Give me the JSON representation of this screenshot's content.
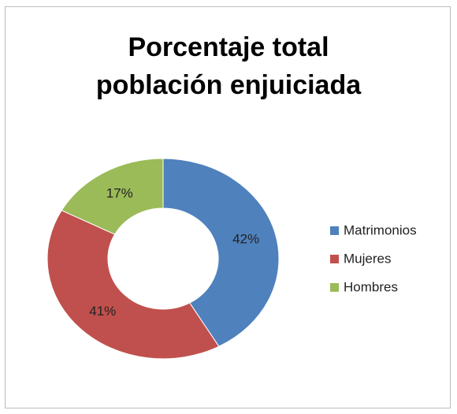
{
  "chart_data": {
    "type": "doughnut",
    "title": "Porcentaje total población enjuiciada",
    "categories": [
      "Matrimonios",
      "Mujeres",
      "Hombres"
    ],
    "values": [
      42,
      41,
      17
    ],
    "value_labels": [
      "42%",
      "41%",
      "17%"
    ],
    "colors": [
      "#4f81bd",
      "#c0504d",
      "#9bbb59"
    ],
    "legend": "right"
  }
}
